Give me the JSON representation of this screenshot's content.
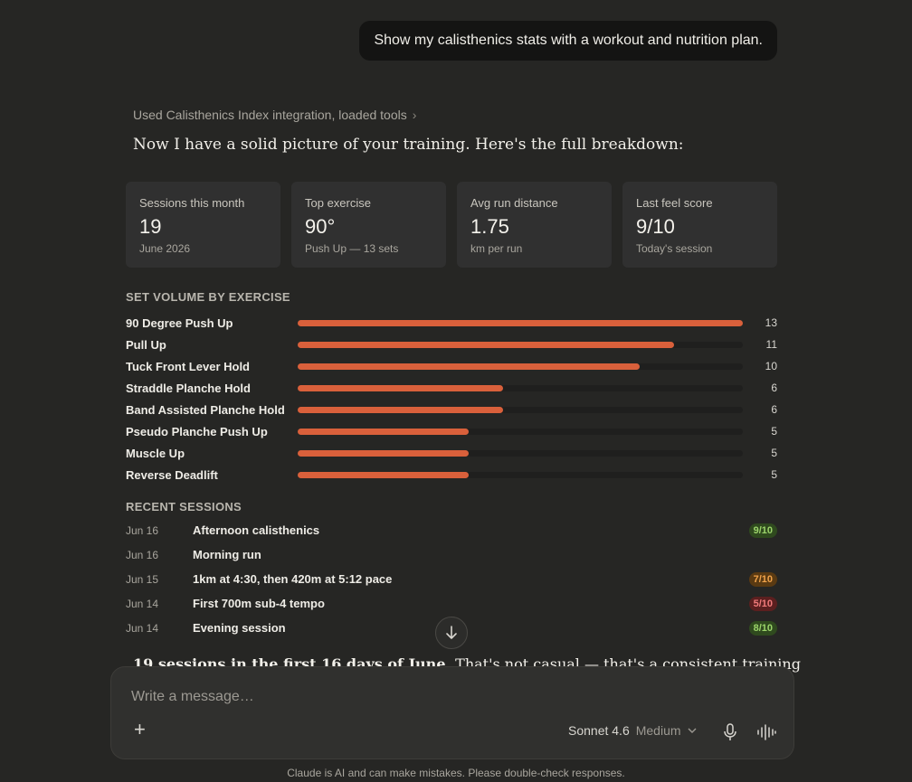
{
  "user_message": "Show my calisthenics stats with a workout and nutrition plan.",
  "tool_line": "Used Calisthenics Index integration, loaded tools",
  "intro": "Now I have a solid picture of your training. Here's the full breakdown:",
  "cards": [
    {
      "label": "Sessions this month",
      "value": "19",
      "sub": "June 2026"
    },
    {
      "label": "Top exercise",
      "value": "90°",
      "sub": "Push Up — 13 sets"
    },
    {
      "label": "Avg run distance",
      "value": "1.75",
      "sub": "km per run"
    },
    {
      "label": "Last feel score",
      "value": "9/10",
      "sub": "Today's session"
    }
  ],
  "volume_title": "SET VOLUME BY EXERCISE",
  "chart_data": {
    "type": "bar",
    "title": "SET VOLUME BY EXERCISE",
    "categories": [
      "90 Degree Push Up",
      "Pull Up",
      "Tuck Front Lever Hold",
      "Straddle Planche Hold",
      "Band Assisted Planche Hold",
      "Pseudo Planche Push Up",
      "Muscle Up",
      "Reverse Deadlift"
    ],
    "values": [
      13,
      11,
      10,
      6,
      6,
      5,
      5,
      5
    ],
    "xlim": [
      0,
      13
    ],
    "accent": "#d9603b"
  },
  "sessions_title": "RECENT SESSIONS",
  "sessions": [
    {
      "date": "Jun 16",
      "title": "Afternoon calisthenics",
      "score": "9/10",
      "tone": "green"
    },
    {
      "date": "Jun 16",
      "title": "Morning run",
      "score": "",
      "tone": ""
    },
    {
      "date": "Jun 15",
      "title": "1km at 4:30, then 420m at 5:12 pace",
      "score": "7/10",
      "tone": "orange"
    },
    {
      "date": "Jun 14",
      "title": "First 700m sub-4 tempo",
      "score": "5/10",
      "tone": "red"
    },
    {
      "date": "Jun 14",
      "title": "Evening session",
      "score": "8/10",
      "tone": "green"
    }
  ],
  "cut_text_bold": "19 sessions in the first 16 days of June.",
  "cut_text_rest": " That's not casual — that's a consistent training",
  "composer": {
    "placeholder": "Write a message…",
    "model": "Sonnet 4.6",
    "effort": "Medium"
  },
  "disclaimer": "Claude is AI and can make mistakes. Please double-check responses."
}
